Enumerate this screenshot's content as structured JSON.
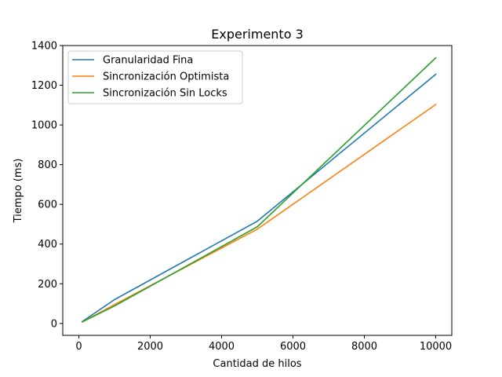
{
  "chart_data": {
    "type": "line",
    "title": "Experimento 3",
    "xlabel": "Cantidad de hilos",
    "ylabel": "Tiempo (ms)",
    "xlim": [
      -450,
      10450
    ],
    "ylim": [
      -60,
      1400
    ],
    "xticks": [
      0,
      2000,
      4000,
      6000,
      8000,
      10000
    ],
    "yticks": [
      0,
      200,
      400,
      600,
      800,
      1000,
      1200,
      1400
    ],
    "grid": false,
    "legend_position": "upper-left",
    "x": [
      100,
      1000,
      5000,
      10000
    ],
    "series": [
      {
        "name": "Granularidad Fina",
        "color": "#1f77b4",
        "values": [
          10,
          120,
          515,
          1255
        ]
      },
      {
        "name": "Sincronización Optimista",
        "color": "#ff7f0e",
        "values": [
          8,
          95,
          475,
          1103
        ]
      },
      {
        "name": "Sincronización Sin Locks",
        "color": "#2ca02c",
        "values": [
          8,
          88,
          487,
          1338
        ]
      }
    ]
  }
}
